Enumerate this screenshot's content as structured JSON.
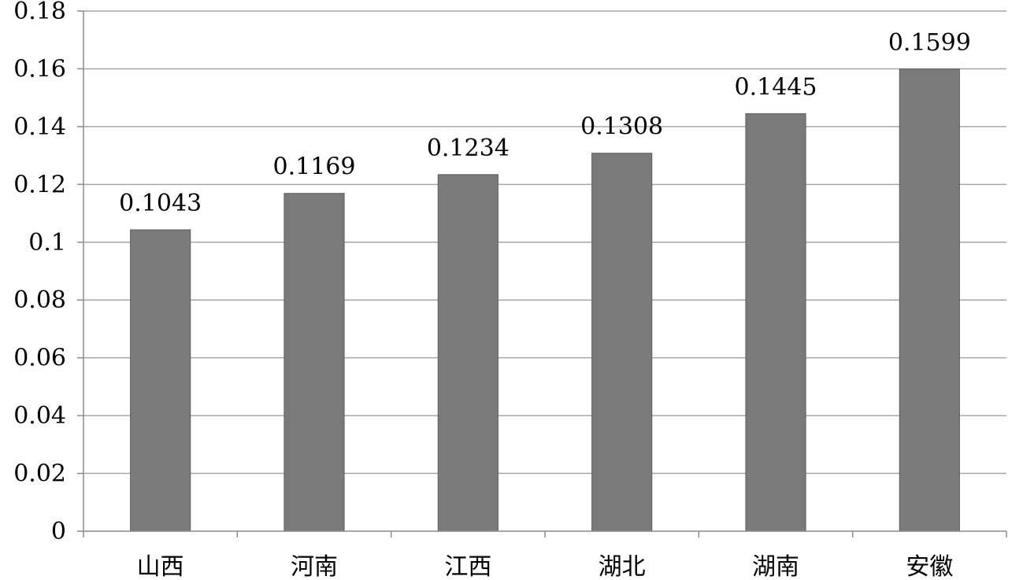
{
  "chart_data": {
    "type": "bar",
    "title": "",
    "xlabel": "",
    "ylabel": "",
    "categories": [
      "山西",
      "河南",
      "江西",
      "湖北",
      "湖南",
      "安徽"
    ],
    "values": [
      0.1043,
      0.1169,
      0.1234,
      0.1308,
      0.1445,
      0.1599
    ],
    "value_labels": [
      "0.1043",
      "0.1169",
      "0.1234",
      "0.1308",
      "0.1445",
      "0.1599"
    ],
    "ylim": [
      0,
      0.18
    ],
    "yticks": [
      0,
      0.02,
      0.04,
      0.06,
      0.08,
      0.1,
      0.12,
      0.14,
      0.16,
      0.18
    ],
    "ytick_labels": [
      "0",
      "0.02",
      "0.04",
      "0.06",
      "0.08",
      "0.1",
      "0.12",
      "0.14",
      "0.16",
      "0.18"
    ],
    "grid": true,
    "legend": "none",
    "colors": {
      "bar": "#7a7a7a",
      "bar_edge": "#5e5e5e",
      "grid": "#a6a6a6",
      "axis": "#8c8c8c"
    }
  }
}
